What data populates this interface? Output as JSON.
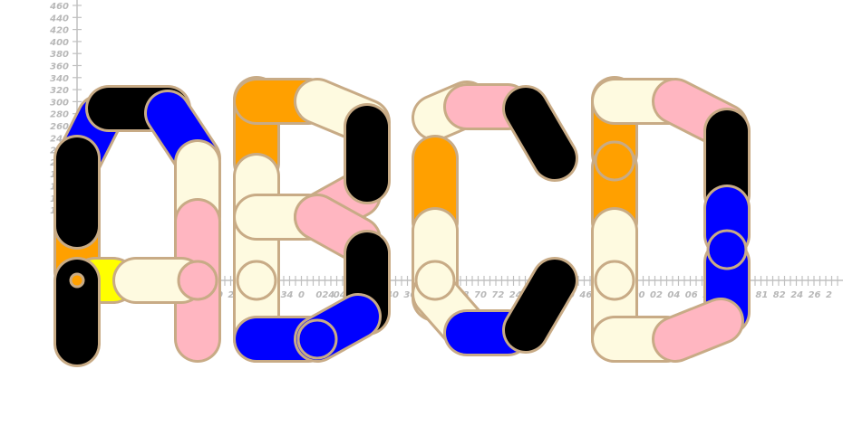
{
  "y_axis": {
    "tick_labels": [
      "460",
      "440",
      "420",
      "400",
      "380",
      "360",
      "340",
      "320",
      "300",
      "280",
      "260",
      "240",
      "220",
      "200",
      "180",
      "160",
      "140",
      "120"
    ]
  },
  "x_axis": {
    "tick_labels": [
      "40",
      "26",
      "40",
      "36",
      "34",
      "0",
      "024",
      "04",
      "04",
      "26",
      "40",
      "36",
      "0",
      "26",
      "68",
      "70",
      "72",
      "24",
      "40",
      "26",
      "40",
      "46",
      "96",
      "98",
      "00",
      "02",
      "04",
      "06",
      "21",
      "41",
      "61",
      "81",
      "82",
      "24",
      "26",
      "2"
    ]
  },
  "colors": {
    "outline": "#c8ab86",
    "cream": "#fefae0",
    "orange": "#ffa000",
    "pink": "#ffb6c1",
    "blue": "#0000ff",
    "black": "#000000",
    "yellow": "#ffff00"
  },
  "letters": [
    "A",
    "B",
    "C",
    "D"
  ]
}
